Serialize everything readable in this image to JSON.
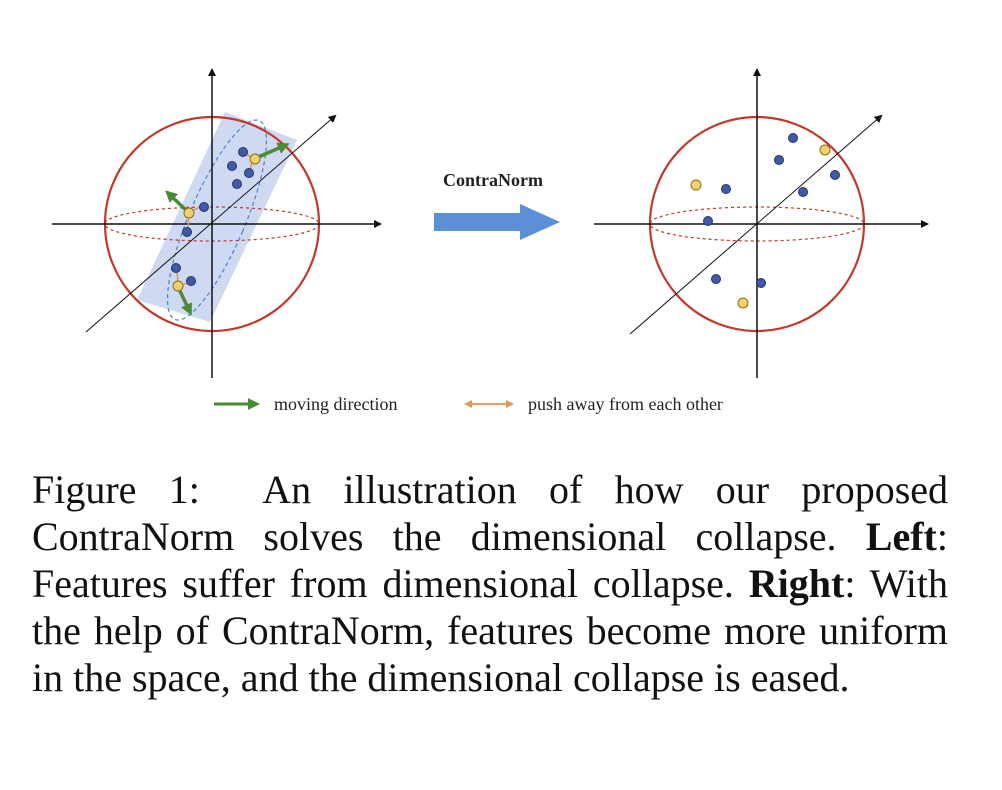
{
  "figure": {
    "arrow_label": "ContraNorm",
    "legend": [
      {
        "label": "moving direction",
        "color": "#4a8a35"
      },
      {
        "label": "push away from each other",
        "color": "#e0955a"
      }
    ],
    "colors": {
      "sphere": "#c0392b",
      "point_blue": "#3e5aa8",
      "point_yellow": "#f2d06b",
      "plane": "#c7d3f0",
      "big_arrow": "#5b8fd6"
    }
  },
  "caption": {
    "figure_label": "Figure 1:",
    "main": "An illustration of how our proposed ContraNorm solves the dimensional collapse.",
    "left_label": "Left",
    "left_text": ": Features suffer from dimensional collapse.",
    "right_label": "Right",
    "right_text": ": With the help of ContraNorm, features become more uniform in the space, and the dimensional collapse is eased."
  }
}
